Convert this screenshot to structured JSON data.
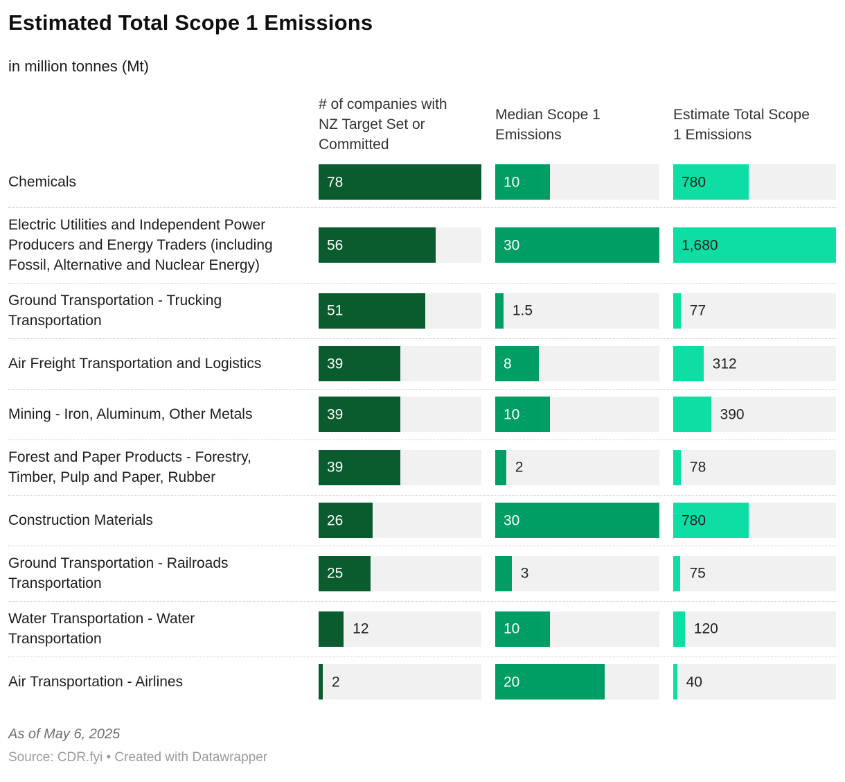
{
  "header": {
    "title": "Estimated Total Scope 1 Emissions",
    "subtitle": "in million tonnes (Mt)"
  },
  "columns": [
    {
      "id": "companies",
      "header": "# of companies with\nNZ Target Set or\nCommitted",
      "max": 78,
      "color": "#0a5b2e",
      "inside_text_color": "#ffffff"
    },
    {
      "id": "median",
      "header": "Median Scope 1\nEmissions",
      "max": 30,
      "color": "#009e64",
      "inside_text_color": "#ffffff"
    },
    {
      "id": "total",
      "header": "Estimate Total Scope\n1 Emissions",
      "max": 1680,
      "color": "#0edda4",
      "inside_text_color": "#222222"
    }
  ],
  "rows": [
    {
      "label": "Chemicals",
      "bars": [
        {
          "value": 78,
          "display": "78",
          "label_inside": true
        },
        {
          "value": 10,
          "display": "10",
          "label_inside": true
        },
        {
          "value": 780,
          "display": "780",
          "label_inside": true
        }
      ]
    },
    {
      "label": "Electric Utilities and Independent Power\nProducers and Energy Traders (including\nFossil, Alternative and Nuclear Energy)",
      "bars": [
        {
          "value": 56,
          "display": "56",
          "label_inside": true
        },
        {
          "value": 30,
          "display": "30",
          "label_inside": true
        },
        {
          "value": 1680,
          "display": "1,680",
          "label_inside": true
        }
      ]
    },
    {
      "label": "Ground Transportation - Trucking\nTransportation",
      "bars": [
        {
          "value": 51,
          "display": "51",
          "label_inside": true
        },
        {
          "value": 1.5,
          "display": "1.5",
          "label_inside": false
        },
        {
          "value": 77,
          "display": "77",
          "label_inside": false
        }
      ]
    },
    {
      "label": "Air Freight Transportation and Logistics",
      "bars": [
        {
          "value": 39,
          "display": "39",
          "label_inside": true
        },
        {
          "value": 8,
          "display": "8",
          "label_inside": true
        },
        {
          "value": 312,
          "display": "312",
          "label_inside": false
        }
      ]
    },
    {
      "label": "Mining - Iron, Aluminum, Other Metals",
      "bars": [
        {
          "value": 39,
          "display": "39",
          "label_inside": true
        },
        {
          "value": 10,
          "display": "10",
          "label_inside": true
        },
        {
          "value": 390,
          "display": "390",
          "label_inside": false
        }
      ]
    },
    {
      "label": "Forest and Paper Products - Forestry,\nTimber, Pulp and Paper, Rubber",
      "bars": [
        {
          "value": 39,
          "display": "39",
          "label_inside": true
        },
        {
          "value": 2,
          "display": "2",
          "label_inside": false
        },
        {
          "value": 78,
          "display": "78",
          "label_inside": false
        }
      ]
    },
    {
      "label": "Construction Materials",
      "bars": [
        {
          "value": 26,
          "display": "26",
          "label_inside": true
        },
        {
          "value": 30,
          "display": "30",
          "label_inside": true
        },
        {
          "value": 780,
          "display": "780",
          "label_inside": true
        }
      ]
    },
    {
      "label": "Ground Transportation - Railroads\nTransportation",
      "bars": [
        {
          "value": 25,
          "display": "25",
          "label_inside": true
        },
        {
          "value": 3,
          "display": "3",
          "label_inside": false
        },
        {
          "value": 75,
          "display": "75",
          "label_inside": false
        }
      ]
    },
    {
      "label": "Water Transportation - Water\nTransportation",
      "bars": [
        {
          "value": 12,
          "display": "12",
          "label_inside": false
        },
        {
          "value": 10,
          "display": "10",
          "label_inside": true
        },
        {
          "value": 120,
          "display": "120",
          "label_inside": false
        }
      ]
    },
    {
      "label": "Air Transportation - Airlines",
      "bars": [
        {
          "value": 2,
          "display": "2",
          "label_inside": false
        },
        {
          "value": 20,
          "display": "20",
          "label_inside": true
        },
        {
          "value": 40,
          "display": "40",
          "label_inside": false
        }
      ]
    }
  ],
  "footer": {
    "note": "As of May 6, 2025",
    "source": "Source: CDR.fyi • Created with Datawrapper"
  },
  "colors": {
    "bar_dark_green": "#0a5b2e",
    "bar_medium_green": "#009e64",
    "bar_bright_green": "#0edda4",
    "track_background": "#f1f1f1",
    "outside_label": "#222222",
    "row_separator": "#c9c9c9"
  },
  "chart_data": {
    "type": "bar",
    "orientation": "horizontal",
    "title": "Estimated Total Scope 1 Emissions",
    "subtitle": "in million tonnes (Mt)",
    "categories": [
      "Chemicals",
      "Electric Utilities and Independent Power Producers and Energy Traders (including Fossil, Alternative and Nuclear Energy)",
      "Ground Transportation - Trucking Transportation",
      "Air Freight Transportation and Logistics",
      "Mining - Iron, Aluminum, Other Metals",
      "Forest and Paper Products - Forestry, Timber, Pulp and Paper, Rubber",
      "Construction Materials",
      "Ground Transportation - Railroads Transportation",
      "Water Transportation - Water Transportation",
      "Air Transportation - Airlines"
    ],
    "series": [
      {
        "name": "# of companies with NZ Target Set or Committed",
        "values": [
          78,
          56,
          51,
          39,
          39,
          39,
          26,
          25,
          12,
          2
        ],
        "axis_max": 78,
        "color": "#0a5b2e"
      },
      {
        "name": "Median Scope 1 Emissions",
        "values": [
          10,
          30,
          1.5,
          8,
          10,
          2,
          30,
          3,
          10,
          20
        ],
        "axis_max": 30,
        "color": "#009e64"
      },
      {
        "name": "Estimate Total Scope 1 Emissions",
        "values": [
          780,
          1680,
          77,
          312,
          390,
          78,
          780,
          75,
          120,
          40
        ],
        "axis_max": 1680,
        "color": "#0edda4"
      }
    ],
    "legend_position": "column-headers",
    "grid": false,
    "notes": "As of May 6, 2025",
    "source": "Source: CDR.fyi • Created with Datawrapper"
  }
}
